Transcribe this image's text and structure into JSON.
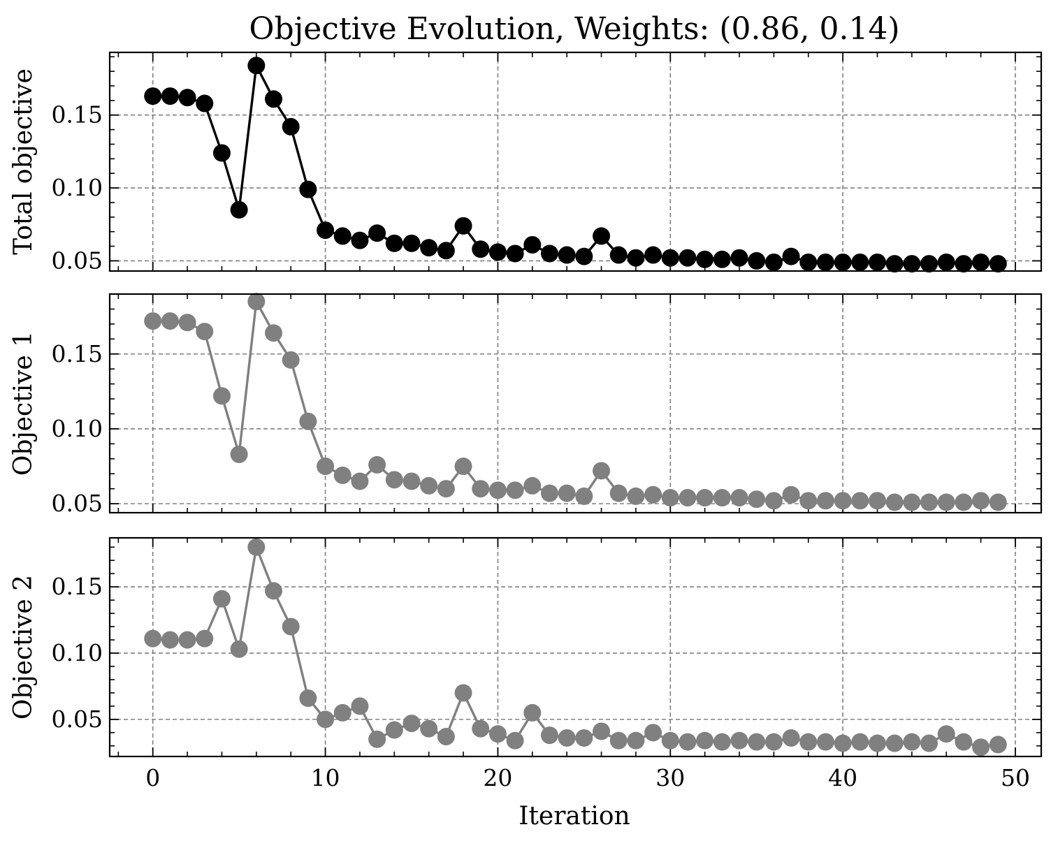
{
  "figure": {
    "title": "Objective Evolution, Weights: (0.86, 0.14)",
    "xlabel": "Iteration"
  },
  "chart_data": [
    {
      "type": "line",
      "ylabel": "Total objective",
      "color": "#000000",
      "x": [
        0,
        1,
        2,
        3,
        4,
        5,
        6,
        7,
        8,
        9,
        10,
        11,
        12,
        13,
        14,
        15,
        16,
        17,
        18,
        19,
        20,
        21,
        22,
        23,
        24,
        25,
        26,
        27,
        28,
        29,
        30,
        31,
        32,
        33,
        34,
        35,
        36,
        37,
        38,
        39,
        40,
        41,
        42,
        43,
        44,
        45,
        46,
        47,
        48,
        49
      ],
      "values": [
        0.163,
        0.163,
        0.162,
        0.158,
        0.124,
        0.085,
        0.184,
        0.161,
        0.142,
        0.099,
        0.071,
        0.067,
        0.064,
        0.069,
        0.062,
        0.062,
        0.059,
        0.057,
        0.074,
        0.058,
        0.056,
        0.055,
        0.061,
        0.055,
        0.054,
        0.053,
        0.067,
        0.054,
        0.052,
        0.054,
        0.052,
        0.052,
        0.051,
        0.051,
        0.052,
        0.05,
        0.049,
        0.053,
        0.049,
        0.049,
        0.049,
        0.049,
        0.049,
        0.048,
        0.048,
        0.048,
        0.049,
        0.048,
        0.049,
        0.048
      ],
      "xlim": [
        -2.5,
        51.5
      ],
      "ylim": [
        0.043,
        0.193
      ],
      "yticks": [
        0.05,
        0.1,
        0.15
      ],
      "ytick_labels": [
        "0.05",
        "0.10",
        "0.15"
      ],
      "grid": true
    },
    {
      "type": "line",
      "ylabel": "Objective 1",
      "color": "#808080",
      "x": [
        0,
        1,
        2,
        3,
        4,
        5,
        6,
        7,
        8,
        9,
        10,
        11,
        12,
        13,
        14,
        15,
        16,
        17,
        18,
        19,
        20,
        21,
        22,
        23,
        24,
        25,
        26,
        27,
        28,
        29,
        30,
        31,
        32,
        33,
        34,
        35,
        36,
        37,
        38,
        39,
        40,
        41,
        42,
        43,
        44,
        45,
        46,
        47,
        48,
        49
      ],
      "values": [
        0.172,
        0.172,
        0.171,
        0.165,
        0.122,
        0.083,
        0.185,
        0.164,
        0.146,
        0.105,
        0.075,
        0.069,
        0.065,
        0.076,
        0.066,
        0.065,
        0.062,
        0.06,
        0.075,
        0.06,
        0.059,
        0.059,
        0.062,
        0.057,
        0.057,
        0.055,
        0.072,
        0.057,
        0.055,
        0.056,
        0.054,
        0.054,
        0.054,
        0.054,
        0.054,
        0.053,
        0.052,
        0.056,
        0.052,
        0.052,
        0.052,
        0.052,
        0.052,
        0.051,
        0.051,
        0.051,
        0.051,
        0.051,
        0.052,
        0.051
      ],
      "xlim": [
        -2.5,
        51.5
      ],
      "ylim": [
        0.044,
        0.19
      ],
      "yticks": [
        0.05,
        0.1,
        0.15
      ],
      "ytick_labels": [
        "0.05",
        "0.10",
        "0.15"
      ],
      "grid": true
    },
    {
      "type": "line",
      "ylabel": "Objective 2",
      "color": "#808080",
      "x": [
        0,
        1,
        2,
        3,
        4,
        5,
        6,
        7,
        8,
        9,
        10,
        11,
        12,
        13,
        14,
        15,
        16,
        17,
        18,
        19,
        20,
        21,
        22,
        23,
        24,
        25,
        26,
        27,
        28,
        29,
        30,
        31,
        32,
        33,
        34,
        35,
        36,
        37,
        38,
        39,
        40,
        41,
        42,
        43,
        44,
        45,
        46,
        47,
        48,
        49
      ],
      "values": [
        0.111,
        0.11,
        0.11,
        0.111,
        0.141,
        0.103,
        0.18,
        0.147,
        0.12,
        0.066,
        0.05,
        0.055,
        0.06,
        0.035,
        0.042,
        0.047,
        0.043,
        0.037,
        0.07,
        0.043,
        0.039,
        0.034,
        0.055,
        0.038,
        0.036,
        0.036,
        0.041,
        0.034,
        0.034,
        0.04,
        0.034,
        0.033,
        0.034,
        0.033,
        0.034,
        0.033,
        0.033,
        0.036,
        0.033,
        0.033,
        0.032,
        0.033,
        0.032,
        0.032,
        0.033,
        0.032,
        0.039,
        0.033,
        0.029,
        0.031
      ],
      "xlim": [
        -2.5,
        51.5
      ],
      "ylim": [
        0.022,
        0.187
      ],
      "yticks": [
        0.05,
        0.1,
        0.15
      ],
      "ytick_labels": [
        "0.05",
        "0.10",
        "0.15"
      ],
      "grid": true
    }
  ],
  "x_axis": {
    "ticks": [
      0,
      10,
      20,
      30,
      40,
      50
    ],
    "tick_labels": [
      "0",
      "10",
      "20",
      "30",
      "40",
      "50"
    ]
  }
}
